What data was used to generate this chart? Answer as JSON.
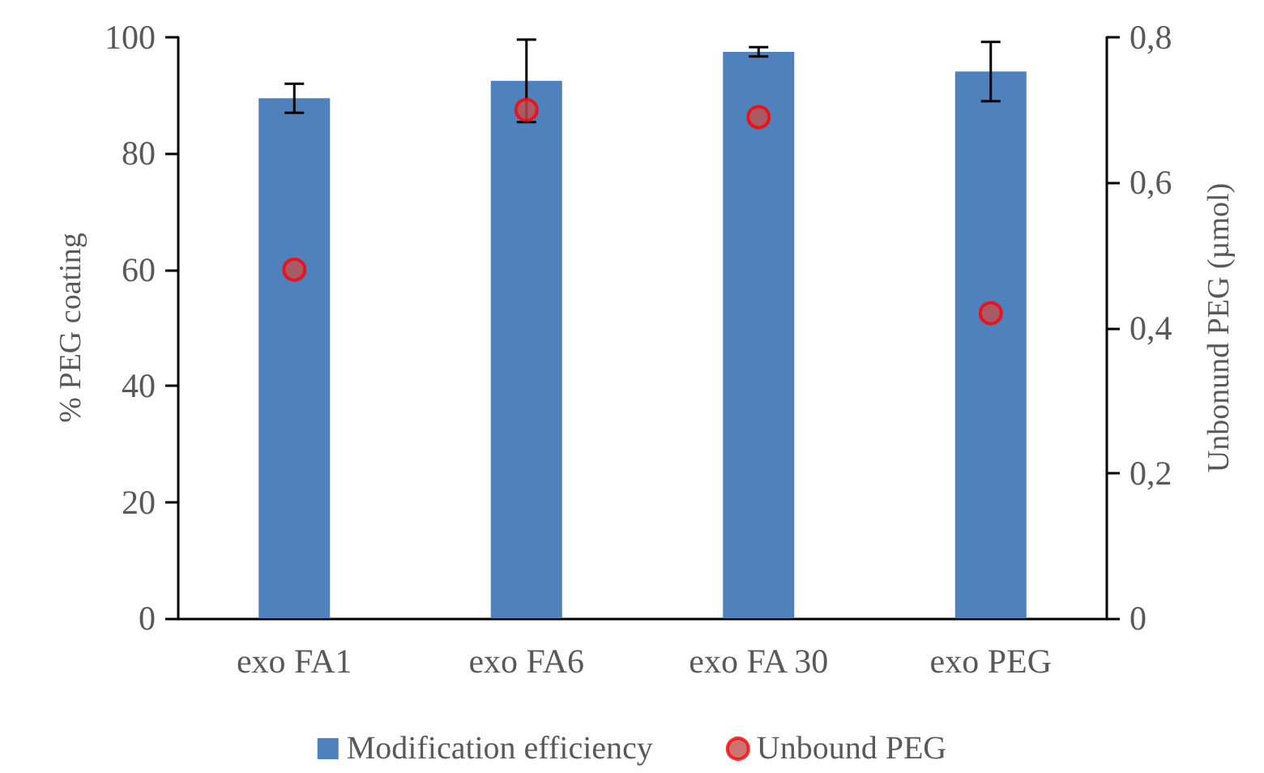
{
  "chart_data": {
    "type": "bar",
    "categories": [
      "exo FA1",
      "exo FA6",
      "exo FA 30",
      "exo PEG"
    ],
    "ylabel": "% PEG coating",
    "y2label": "Unbonund PEG (µmol)",
    "series": [
      {
        "name": "Modification efficiency",
        "color": "#4f81bd",
        "values": [
          89.5,
          92.5,
          97.5,
          94.1
        ],
        "errors": [
          2.5,
          7.1,
          0.8,
          5.1
        ]
      },
      {
        "name": "Unbound PEG",
        "type": "scatter",
        "axis": "y2",
        "color": "#c0504d",
        "marker": "circle",
        "values": [
          0.48,
          0.7,
          0.69,
          0.42
        ]
      }
    ],
    "ylim": [
      0,
      100
    ],
    "yticks": [
      0,
      20,
      40,
      60,
      80,
      100
    ],
    "y2lim": [
      0,
      0.8
    ],
    "y2ticks": [
      {
        "value": 0,
        "label": "0"
      },
      {
        "value": 0.2,
        "label": "0,2"
      },
      {
        "value": 0.4,
        "label": "0,4"
      },
      {
        "value": 0.6,
        "label": "0,6"
      },
      {
        "value": 0.8,
        "label": "0,8"
      }
    ],
    "grid": false,
    "legend": "bottom"
  }
}
